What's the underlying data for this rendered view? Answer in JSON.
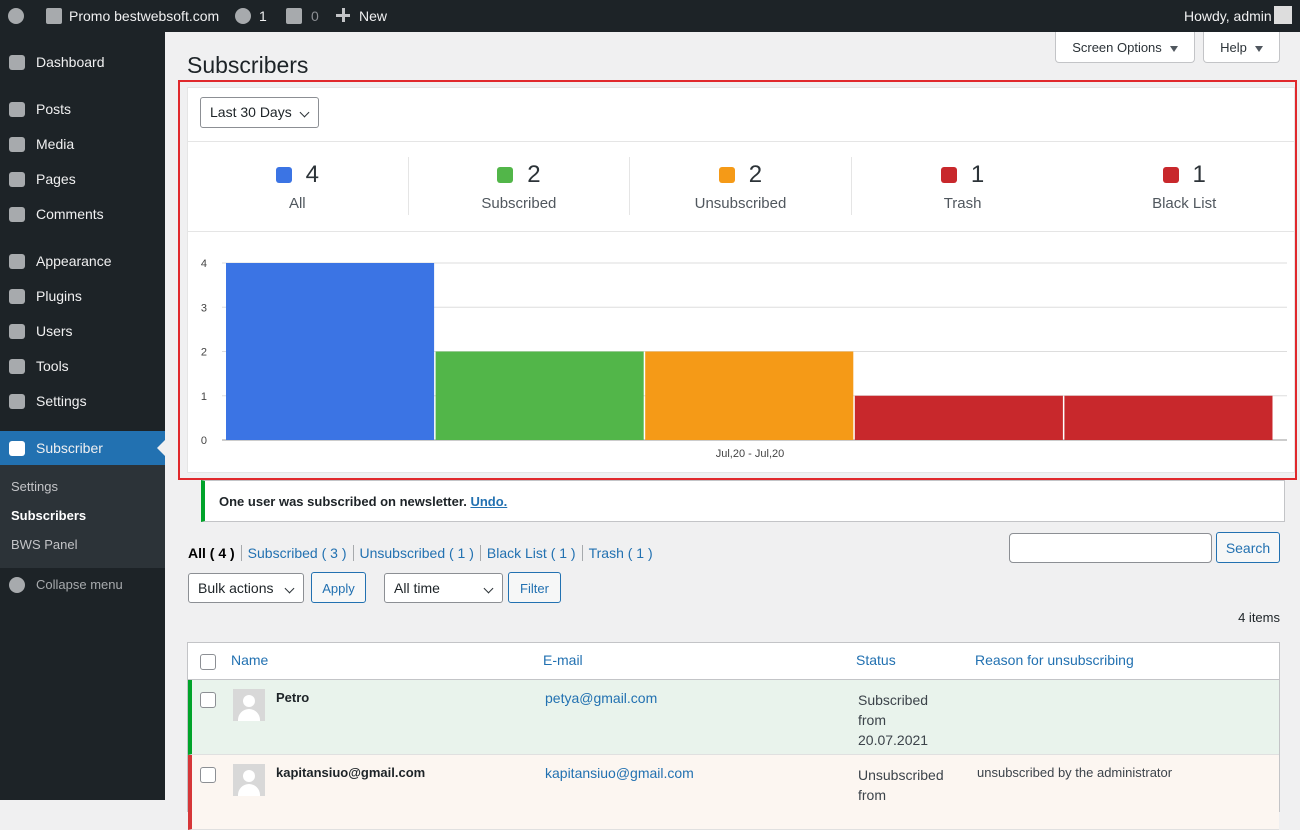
{
  "admin_bar": {
    "site": "Promo bestwebsoft.com",
    "updates": "1",
    "comments": "0",
    "new": "New",
    "howdy": "Howdy, admin"
  },
  "menu": [
    "Dashboard",
    "Posts",
    "Media",
    "Pages",
    "Comments",
    "Appearance",
    "Plugins",
    "Users",
    "Tools",
    "Settings",
    "Subscriber"
  ],
  "submenu": [
    "Settings",
    "Subscribers",
    "BWS Panel"
  ],
  "collapse": "Collapse menu",
  "page_title": "Subscribers",
  "screen_options": "Screen Options",
  "help": "Help",
  "period": "Last 30 Days",
  "chart_data": {
    "type": "bar",
    "categories": [
      "Jul,20 - Jul,20"
    ],
    "series": [
      {
        "name": "All",
        "color": "#3b74e4",
        "values": [
          4
        ]
      },
      {
        "name": "Subscribed",
        "color": "#52b649",
        "values": [
          2
        ]
      },
      {
        "name": "Unsubscribed",
        "color": "#f59a17",
        "values": [
          2
        ]
      },
      {
        "name": "Trash",
        "color": "#c8282c",
        "values": [
          1
        ]
      },
      {
        "name": "Black List",
        "color": "#c8282c",
        "values": [
          1
        ]
      }
    ],
    "ylim": [
      0,
      4
    ],
    "yticks": [
      0,
      1,
      2,
      3,
      4
    ],
    "grid": true
  },
  "notice": {
    "text": "One user was subscribed on newsletter.",
    "link": "Undo."
  },
  "views": [
    "All ( 4 )",
    "Subscribed ( 3 )",
    "Unsubscribed ( 1 )",
    "Black List ( 1 )",
    "Trash ( 1 )"
  ],
  "search_button": "Search",
  "bulk_actions": "Bulk actions",
  "apply": "Apply",
  "date_filter": "All time",
  "filter": "Filter",
  "items_count": "4 items",
  "table": {
    "columns": [
      "Name",
      "E-mail",
      "Status",
      "Reason for unsubscribing"
    ],
    "rows": [
      {
        "name": "Petro",
        "email": "petya@gmail.com",
        "status": "Subscribed from 20.07.2021"
      },
      {
        "name": "kapitansiuo@gmail.com",
        "email": "kapitansiuo@gmail.com",
        "status": "Unsubscribed from",
        "reason": "unsubscribed by the administrator"
      }
    ]
  }
}
